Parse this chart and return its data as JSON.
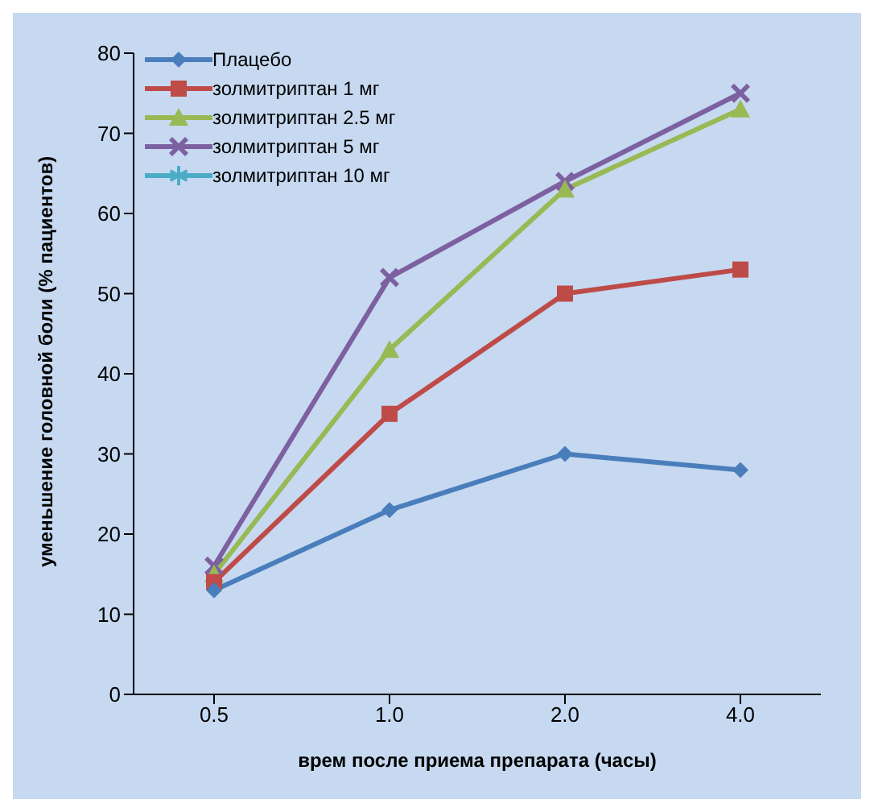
{
  "chart_data": {
    "type": "line",
    "xlabel": "врем после приема препарата (часы)",
    "ylabel": "уменьшение головной боли (% пациентов)",
    "categories": [
      "0.5",
      "1.0",
      "2.0",
      "4.0"
    ],
    "ylim": [
      0,
      80
    ],
    "yticks": [
      0,
      10,
      20,
      30,
      40,
      50,
      60,
      70,
      80
    ],
    "grid": false,
    "legend": "top left",
    "series": [
      {
        "name": "Плацебо",
        "color": "#4a7ebb",
        "marker": "diamond",
        "values": [
          13,
          23,
          30,
          28
        ]
      },
      {
        "name": "золмитриптан 1 мг",
        "color": "#be4b48",
        "marker": "square",
        "values": [
          14,
          35,
          50,
          53
        ]
      },
      {
        "name": "золмитриптан 2.5 мг",
        "color": "#98b954",
        "marker": "triangle",
        "values": [
          15,
          43,
          63,
          73
        ]
      },
      {
        "name": "золмитриптан 5 мг",
        "color": "#7d60a0",
        "marker": "cross",
        "values": [
          16,
          52,
          64,
          75
        ]
      },
      {
        "name": "золмитриптан 10 мг",
        "color": "#4bacc6",
        "marker": "star",
        "values": [
          null,
          null,
          null,
          null
        ]
      }
    ]
  }
}
